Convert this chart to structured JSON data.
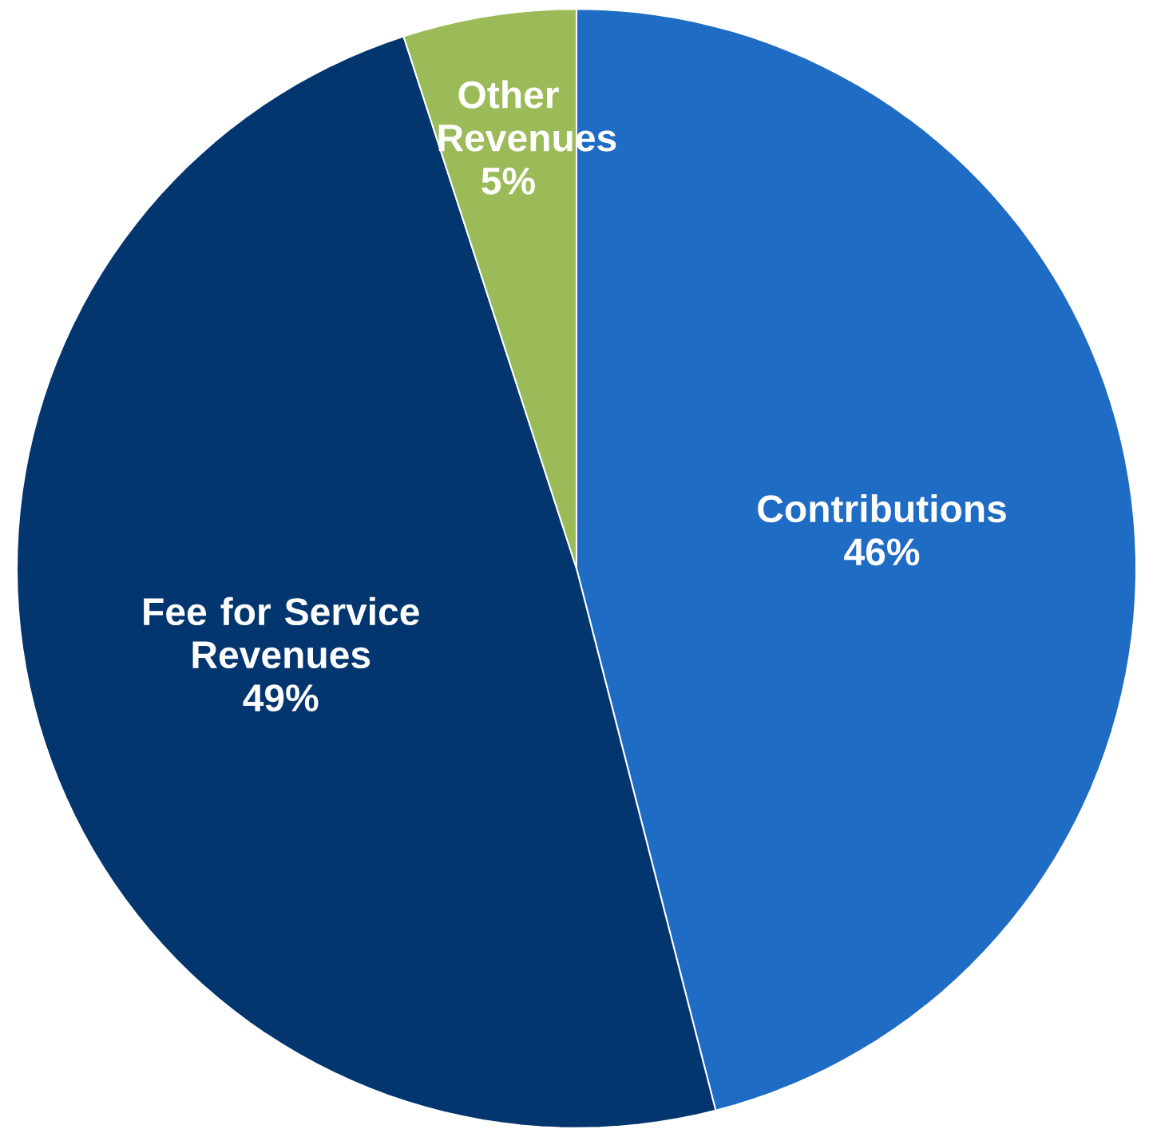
{
  "chart_data": {
    "type": "pie",
    "categories": [
      "Contributions",
      "Fee for Service Revenues",
      "Other Revenues"
    ],
    "values": [
      46,
      49,
      5
    ],
    "value_labels": [
      "46%",
      "49%",
      "5%"
    ],
    "colors": [
      "#1f6cc4",
      "#03356f",
      "#9bbb59"
    ]
  }
}
